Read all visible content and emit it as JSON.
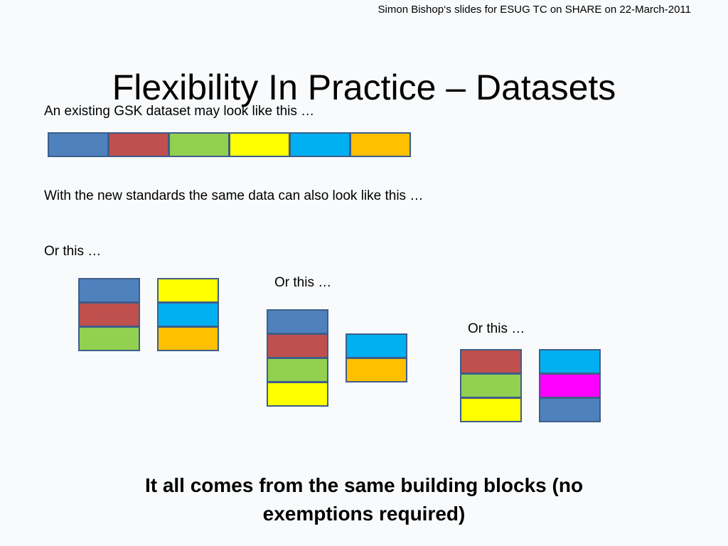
{
  "header_note": "Simon Bishop‘s slides for ESUG TC on SHARE on 22-March-2011",
  "title": "Flexibility In Practice – Datasets",
  "captions": {
    "existing": "An existing GSK dataset may look like this …",
    "new_standards": "With the new standards the same data can also look like this …",
    "or_this_1": "Or this …",
    "or_this_2": "Or this …",
    "or_this_3": "Or this …"
  },
  "conclusion": "It all comes from the same building blocks (no exemptions required)",
  "colors": {
    "blue": "#4f81bd",
    "red": "#c0504d",
    "green": "#92d050",
    "yellow": "#ffff00",
    "cyan": "#00b0f0",
    "orange": "#ffc000",
    "magenta": "#ff00ff",
    "border": "#3d5e8a"
  },
  "diagram": {
    "existing_dataset": [
      "blue",
      "red",
      "green",
      "yellow",
      "cyan",
      "orange"
    ],
    "arrangements": [
      {
        "stacks": [
          [
            "blue",
            "red",
            "green"
          ],
          [
            "yellow",
            "cyan",
            "orange"
          ]
        ]
      },
      {
        "stacks": [
          [
            "blue",
            "red",
            "green",
            "yellow"
          ],
          [
            "cyan",
            "orange"
          ]
        ]
      },
      {
        "stacks": [
          [
            "red",
            "green",
            "yellow"
          ],
          [
            "cyan",
            "magenta",
            "blue"
          ]
        ]
      }
    ]
  }
}
